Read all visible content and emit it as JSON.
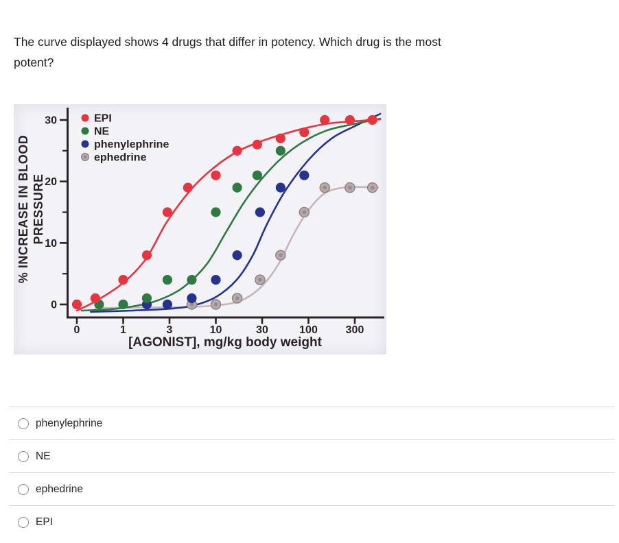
{
  "question": {
    "text": "The curve displayed shows 4 drugs that differ in potency. Which drug is the most potent?"
  },
  "options": [
    {
      "label": "phenylephrine"
    },
    {
      "label": "NE"
    },
    {
      "label": "ephedrine"
    },
    {
      "label": "EPI"
    }
  ],
  "colors": {
    "axis_and_text": "#2a2225",
    "page_background": "#ffffff",
    "chart_background": "#f2f2f7",
    "divider": "#d8d8d8",
    "radio_border": "#81888f",
    "epi_red": "#e73540",
    "ne_green": "#2e7a41",
    "phenylephrine_blue": "#24348e",
    "ephedrine_gray": "#b7aaac"
  },
  "chart_data": {
    "type": "line",
    "title": "",
    "xlabel": "[AGONIST], mg/kg body weight",
    "ylabel": "% INCREASE IN BLOOD PRESSURE",
    "ylabel_lines": [
      "% INCREASE IN BLOOD",
      "PRESSURE"
    ],
    "x_scale": "log, broken axis with 0 plotted one tick-interval left of 1; ticks spaced 0.5 decade apart",
    "x_ticks": [
      "0",
      "1",
      "3",
      "10",
      "30",
      "100",
      "300"
    ],
    "y_ticks": [
      "0",
      "10",
      "20",
      "30"
    ],
    "y_minor_ticks": [
      5,
      15,
      25
    ],
    "ylim": [
      -2,
      32
    ],
    "grid": false,
    "legend_position": "top-left inside plot",
    "axis_note": "u = plot position in tick units: u=0 for dose 0 (broken axis), else u = 1 + 2*log10(dose)",
    "series": [
      {
        "name": "EPI",
        "color": "#e73540",
        "marker": {
          "fill": "#e73540"
        },
        "points_dose_response": [
          [
            0,
            0
          ],
          [
            0.5,
            1
          ],
          [
            1,
            4
          ],
          [
            1.8,
            8
          ],
          [
            3,
            15
          ],
          [
            5,
            19
          ],
          [
            10,
            21
          ],
          [
            17,
            25
          ],
          [
            28,
            26
          ],
          [
            50,
            27
          ],
          [
            90,
            28
          ],
          [
            150,
            30
          ],
          [
            280,
            30
          ],
          [
            490,
            30
          ]
        ],
        "fitted_curve_u_y": [
          [
            0,
            -1
          ],
          [
            0.4,
            0.5
          ],
          [
            1,
            3.5
          ],
          [
            1.5,
            7.5
          ],
          [
            1.95,
            13.5
          ],
          [
            2.5,
            19
          ],
          [
            3,
            22.5
          ],
          [
            3.5,
            25
          ],
          [
            4,
            26.6
          ],
          [
            4.5,
            27.8
          ],
          [
            5,
            28.8
          ],
          [
            5.5,
            29.5
          ],
          [
            6,
            29.8
          ],
          [
            6.55,
            30.1
          ]
        ]
      },
      {
        "name": "NE",
        "color": "#2e7a41",
        "marker": {
          "fill": "#2e7a41"
        },
        "points_dose_response": [
          [
            0.55,
            0
          ],
          [
            1,
            0
          ],
          [
            1.8,
            1
          ],
          [
            3,
            4
          ],
          [
            5.5,
            4
          ],
          [
            10,
            15
          ],
          [
            17,
            19
          ],
          [
            28,
            21
          ],
          [
            50,
            25
          ]
        ],
        "fitted_curve_u_y": [
          [
            0.1,
            -1
          ],
          [
            0.7,
            -0.8
          ],
          [
            1.3,
            -0.2
          ],
          [
            1.8,
            0.8
          ],
          [
            2.3,
            2.8
          ],
          [
            2.8,
            6.5
          ],
          [
            3.2,
            11.5
          ],
          [
            3.6,
            16.5
          ],
          [
            4,
            20.5
          ],
          [
            4.45,
            24
          ],
          [
            4.9,
            26.5
          ],
          [
            5.4,
            28.3
          ],
          [
            5.95,
            29.3
          ],
          [
            6.55,
            30.2
          ]
        ]
      },
      {
        "name": "phenylephrine",
        "color": "#24348e",
        "marker": {
          "fill": "#24348e"
        },
        "points_dose_response": [
          [
            1.8,
            0
          ],
          [
            3,
            0
          ],
          [
            5.5,
            1
          ],
          [
            10,
            4
          ],
          [
            17,
            8
          ],
          [
            30,
            15
          ],
          [
            50,
            19
          ],
          [
            90,
            21
          ]
        ],
        "fitted_curve_u_y": [
          [
            0.3,
            -1.2
          ],
          [
            1.2,
            -1
          ],
          [
            2,
            -0.7
          ],
          [
            2.5,
            -0.2
          ],
          [
            3,
            1.2
          ],
          [
            3.45,
            4
          ],
          [
            3.8,
            8
          ],
          [
            4.1,
            13
          ],
          [
            4.5,
            18.5
          ],
          [
            5,
            23.5
          ],
          [
            5.5,
            27
          ],
          [
            6,
            29
          ],
          [
            6.55,
            31
          ]
        ]
      },
      {
        "name": "ephedrine",
        "color": "#c6b6ba",
        "marker": {
          "fill": "#b7aaac",
          "stroke": "#8e8183",
          "inner": "#958789"
        },
        "points_dose_response": [
          [
            5.5,
            0
          ],
          [
            10,
            0
          ],
          [
            17,
            1
          ],
          [
            30,
            4
          ],
          [
            50,
            8
          ],
          [
            90,
            15
          ],
          [
            150,
            19
          ],
          [
            280,
            19
          ],
          [
            490,
            19
          ]
        ],
        "fitted_curve_u_y": [
          [
            0.4,
            -0.6
          ],
          [
            1.5,
            -0.5
          ],
          [
            2.5,
            -0.4
          ],
          [
            3.2,
            0
          ],
          [
            3.6,
            0.8
          ],
          [
            4,
            3
          ],
          [
            4.35,
            6.5
          ],
          [
            4.65,
            11
          ],
          [
            4.95,
            14.8
          ],
          [
            5.3,
            17.8
          ],
          [
            5.6,
            18.8
          ],
          [
            6,
            19.1
          ],
          [
            6.5,
            19
          ]
        ]
      }
    ]
  }
}
